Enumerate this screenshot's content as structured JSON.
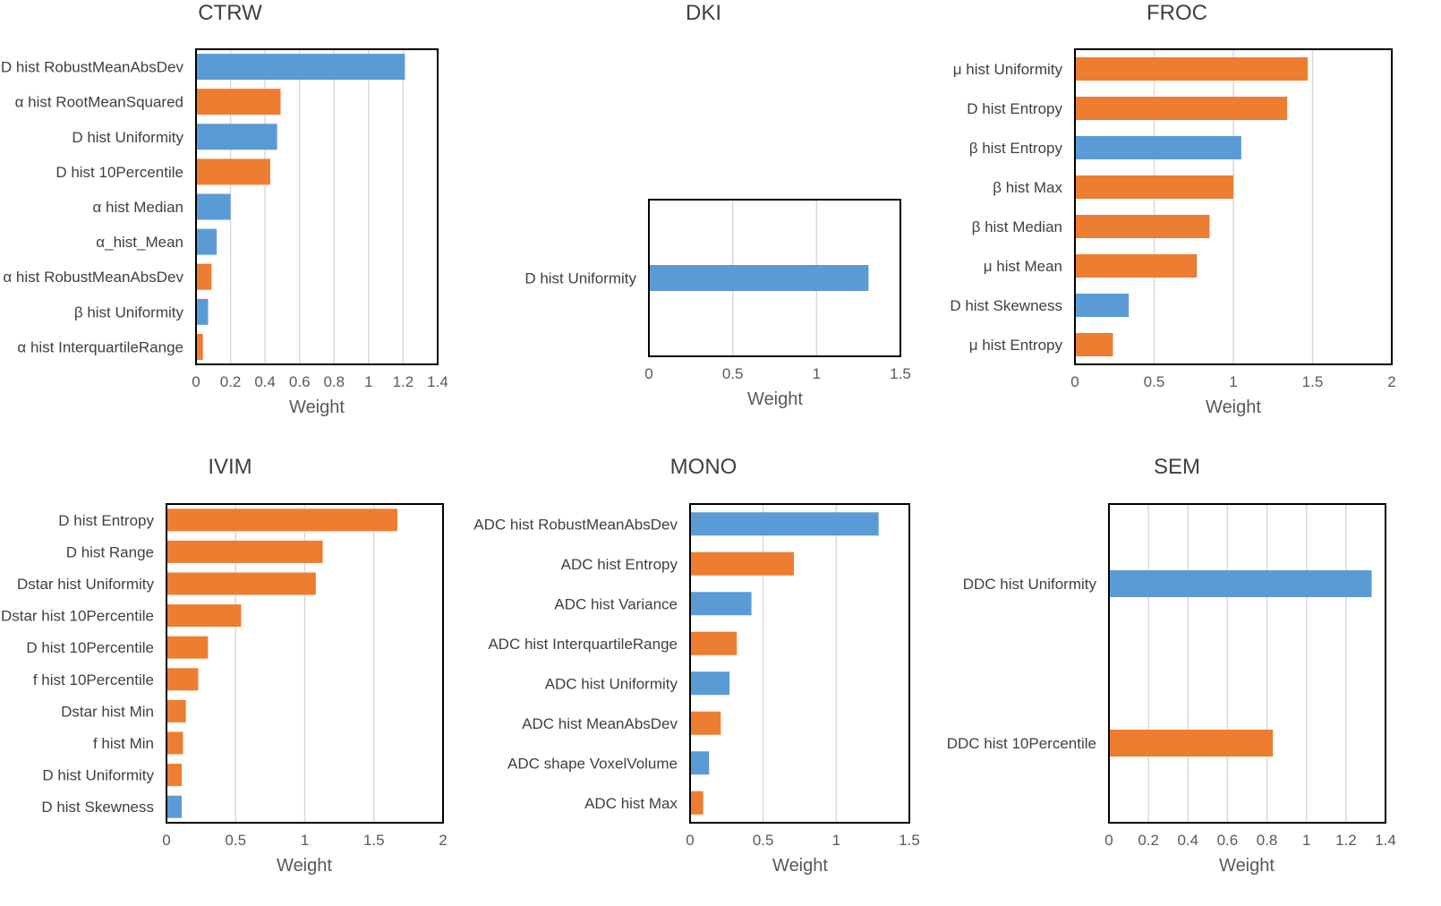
{
  "colors": {
    "blue": "#5b9bd5",
    "orange": "#ed7d31"
  },
  "chart_data": [
    {
      "type": "bar",
      "orientation": "horizontal",
      "title": "CTRW",
      "xlabel": "Weight",
      "ylabel": "",
      "xlim": [
        0,
        1.4
      ],
      "ticks": [
        0,
        0.2,
        0.4,
        0.6,
        0.8,
        1,
        1.2,
        1.4
      ],
      "tick_labels": [
        "0",
        "0.2",
        "0.4",
        "0.6",
        "0.8",
        "1",
        "1.2",
        "1.4"
      ],
      "grid": true,
      "categories": [
        "D hist RobustMeanAbsDev",
        "α hist RootMeanSquared",
        "D hist Uniformity",
        "D hist 10Percentile",
        "α hist Median",
        "α_hist_Mean",
        "α hist RobustMeanAbsDev",
        "β hist Uniformity",
        "α hist InterquartileRange"
      ],
      "values": [
        1.21,
        0.49,
        0.47,
        0.43,
        0.2,
        0.12,
        0.09,
        0.07,
        0.04
      ],
      "colors": [
        "blue",
        "orange",
        "blue",
        "orange",
        "blue",
        "blue",
        "orange",
        "blue",
        "orange"
      ]
    },
    {
      "type": "bar",
      "orientation": "horizontal",
      "title": "DKI",
      "xlabel": "Weight",
      "ylabel": "",
      "xlim": [
        0,
        1.5
      ],
      "ticks": [
        0,
        0.5,
        1,
        1.5
      ],
      "tick_labels": [
        "0",
        "0.5",
        "1",
        "1.5"
      ],
      "grid": true,
      "categories": [
        "D hist Uniformity"
      ],
      "values": [
        1.31
      ],
      "colors": [
        "blue"
      ]
    },
    {
      "type": "bar",
      "orientation": "horizontal",
      "title": "FROC",
      "xlabel": "Weight",
      "ylabel": "",
      "xlim": [
        0,
        2
      ],
      "ticks": [
        0,
        0.5,
        1,
        1.5,
        2
      ],
      "tick_labels": [
        "0",
        "0.5",
        "1",
        "1.5",
        "2"
      ],
      "grid": true,
      "categories": [
        "μ hist Uniformity",
        "D hist Entropy",
        "β hist Entropy",
        "β hist Max",
        "β hist Median",
        "μ hist Mean",
        "D hist Skewness",
        "μ hist Entropy"
      ],
      "values": [
        1.47,
        1.34,
        1.05,
        1.0,
        0.85,
        0.77,
        0.34,
        0.24
      ],
      "colors": [
        "orange",
        "orange",
        "blue",
        "orange",
        "orange",
        "orange",
        "blue",
        "orange"
      ]
    },
    {
      "type": "bar",
      "orientation": "horizontal",
      "title": "IVIM",
      "xlabel": "Weight",
      "ylabel": "",
      "xlim": [
        0,
        2
      ],
      "ticks": [
        0,
        0.5,
        1,
        1.5,
        2
      ],
      "tick_labels": [
        "0",
        "0.5",
        "1",
        "1.5",
        "2"
      ],
      "grid": true,
      "categories": [
        "D hist Entropy",
        "D hist Range",
        "Dstar hist Uniformity",
        "Dstar hist 10Percentile",
        "D hist 10Percentile",
        "f hist 10Percentile",
        "Dstar hist Min",
        "f hist Min",
        "D hist Uniformity",
        "D hist Skewness"
      ],
      "values": [
        1.67,
        1.13,
        1.08,
        0.54,
        0.3,
        0.23,
        0.14,
        0.12,
        0.11,
        0.11
      ],
      "colors": [
        "orange",
        "orange",
        "orange",
        "orange",
        "orange",
        "orange",
        "orange",
        "orange",
        "orange",
        "blue"
      ]
    },
    {
      "type": "bar",
      "orientation": "horizontal",
      "title": "MONO",
      "xlabel": "Weight",
      "ylabel": "",
      "xlim": [
        0,
        1.5
      ],
      "ticks": [
        0,
        0.5,
        1,
        1.5
      ],
      "tick_labels": [
        "0",
        "0.5",
        "1",
        "1.5"
      ],
      "grid": true,
      "categories": [
        "ADC hist RobustMeanAbsDev",
        "ADC hist Entropy",
        "ADC hist Variance",
        "ADC hist InterquartileRange",
        "ADC hist Uniformity",
        "ADC hist MeanAbsDev",
        "ADC shape VoxelVolume",
        "ADC hist Max"
      ],
      "values": [
        1.29,
        0.71,
        0.42,
        0.32,
        0.27,
        0.21,
        0.13,
        0.09
      ],
      "colors": [
        "blue",
        "orange",
        "blue",
        "orange",
        "blue",
        "orange",
        "blue",
        "orange"
      ]
    },
    {
      "type": "bar",
      "orientation": "horizontal",
      "title": "SEM",
      "xlabel": "Weight",
      "ylabel": "",
      "xlim": [
        0,
        1.4
      ],
      "ticks": [
        0,
        0.2,
        0.4,
        0.6,
        0.8,
        1,
        1.2,
        1.4
      ],
      "tick_labels": [
        "0",
        "0.2",
        "0.4",
        "0.6",
        "0.8",
        "1",
        "1.2",
        "1.4"
      ],
      "grid": true,
      "categories": [
        "DDC hist Uniformity",
        "DDC hist 10Percentile"
      ],
      "values": [
        1.33,
        0.83
      ],
      "colors": [
        "blue",
        "orange"
      ]
    }
  ]
}
